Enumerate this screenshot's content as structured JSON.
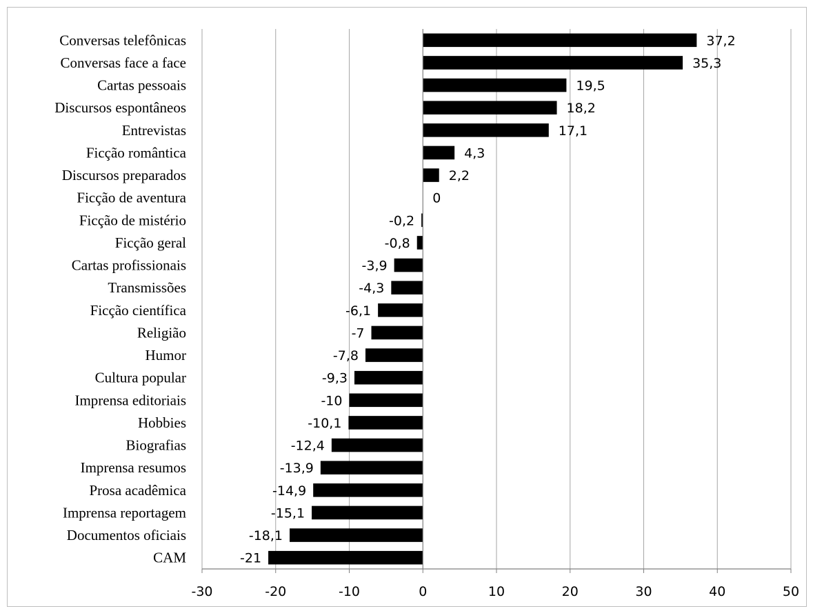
{
  "chart_data": {
    "type": "bar",
    "orientation": "horizontal",
    "categories": [
      "Conversas telefônicas",
      "Conversas face a face",
      "Cartas pessoais",
      "Discursos espontâneos",
      "Entrevistas",
      "Ficção romântica",
      "Discursos preparados",
      "Ficção de aventura",
      "Ficção de mistério",
      "Ficção geral",
      "Cartas profissionais",
      "Transmissões",
      "Ficção científica",
      "Religião",
      "Humor",
      "Cultura popular",
      "Imprensa editoriais",
      "Hobbies",
      "Biografias",
      "Imprensa resumos",
      "Prosa acadêmica",
      "Imprensa reportagem",
      "Documentos oficiais",
      "CAM"
    ],
    "values": [
      37.2,
      35.3,
      19.5,
      18.2,
      17.1,
      4.3,
      2.2,
      0,
      -0.2,
      -0.8,
      -3.9,
      -4.3,
      -6.1,
      -7,
      -7.8,
      -9.3,
      -10,
      -10.1,
      -12.4,
      -13.9,
      -14.9,
      -15.1,
      -18.1,
      -21
    ],
    "data_labels": [
      "37,2",
      "35,3",
      "19,5",
      "18,2",
      "17,1",
      "4,3",
      "2,2",
      "0",
      "-0,2",
      "-0,8",
      "-3,9",
      "-4,3",
      "-6,1",
      "-7",
      "-7,8",
      "-9,3",
      "-10",
      "-10,1",
      "-12,4",
      "-13,9",
      "-14,9",
      "-15,1",
      "-18,1",
      "-21"
    ],
    "xlim": [
      -30,
      50
    ],
    "x_ticks": [
      -30,
      -20,
      -10,
      0,
      10,
      20,
      30,
      40,
      50
    ],
    "x_tick_labels": [
      "-30",
      "-20",
      "-10",
      "0",
      "10",
      "20",
      "30",
      "40",
      "50"
    ],
    "grid": "vertical",
    "legend": "none",
    "title": "",
    "xlabel": "",
    "ylabel": "",
    "colors": {
      "bar": "#000000",
      "grid": "#a6a6a6",
      "axis": "#7f7f7f",
      "border": "#bdbdbd",
      "background": "#ffffff"
    }
  }
}
